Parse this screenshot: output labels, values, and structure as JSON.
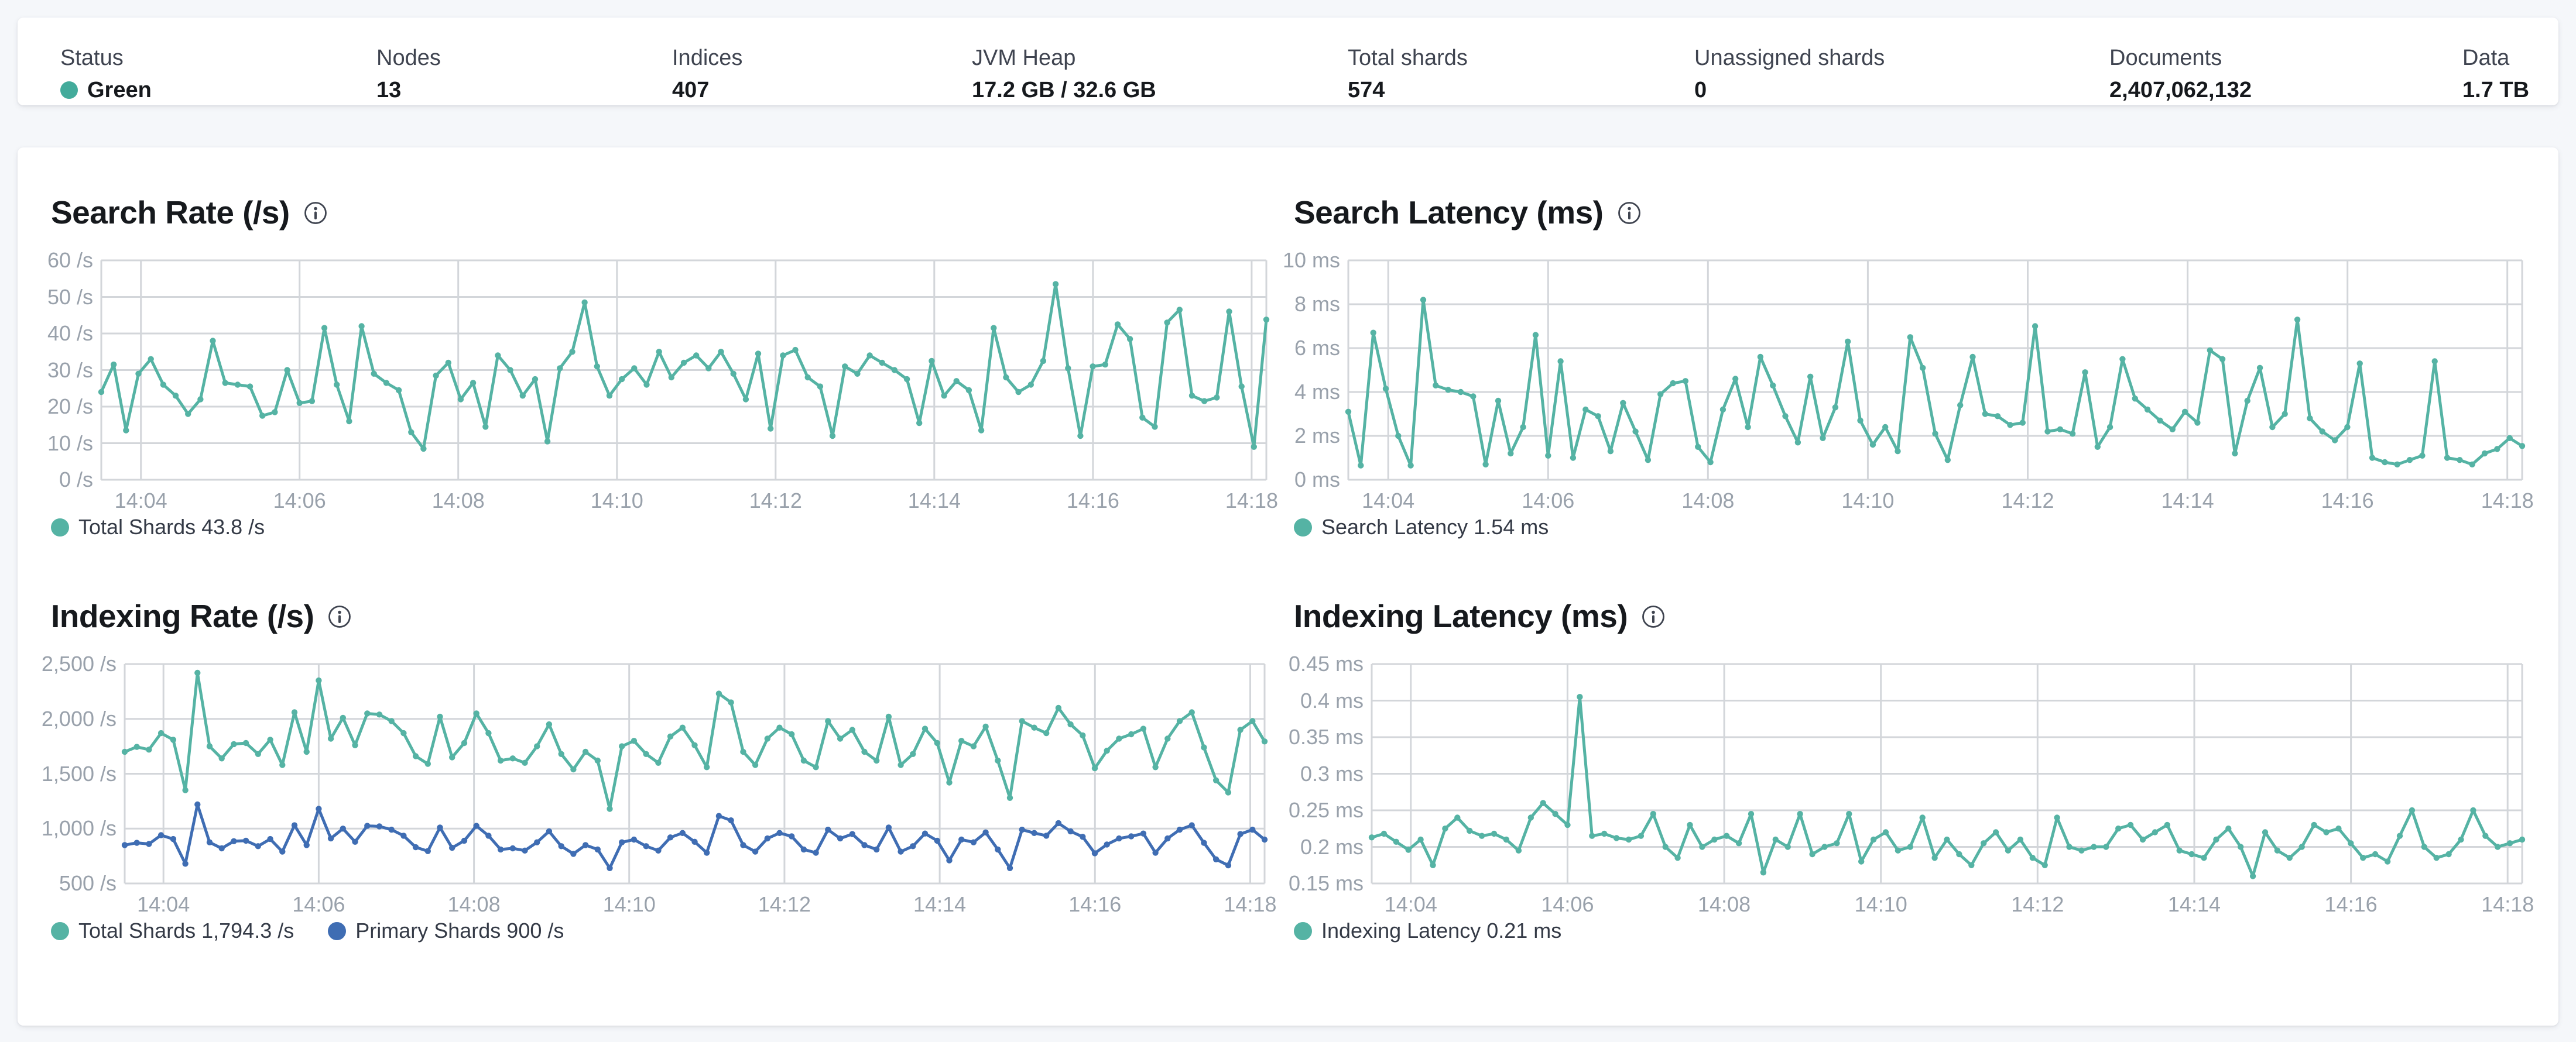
{
  "status_bar": {
    "items": [
      {
        "label": "Status",
        "value": "Green",
        "type": "health",
        "dot_color": "#43ab9b"
      },
      {
        "label": "Nodes",
        "value": "13"
      },
      {
        "label": "Indices",
        "value": "407"
      },
      {
        "label": "JVM Heap",
        "value": "17.2 GB / 32.6 GB"
      },
      {
        "label": "Total shards",
        "value": "574"
      },
      {
        "label": "Unassigned shards",
        "value": "0"
      },
      {
        "label": "Documents",
        "value": "2,407,062,132"
      },
      {
        "label": "Data",
        "value": "1.7 TB"
      }
    ]
  },
  "colors": {
    "teal": "#55b3a4",
    "blue": "#3f6db3",
    "grid": "#d3d6da",
    "tick_text": "#99a1ab",
    "page_bg": "#f5f7fa",
    "card_bg": "#ffffff",
    "title_text": "#16191d"
  },
  "chart_data": [
    {
      "id": "search-rate",
      "type": "line",
      "title": "Search Rate (/s)",
      "xticks": [
        "14:04",
        "14:06",
        "14:08",
        "14:10",
        "14:12",
        "14:14",
        "14:16",
        "14:18"
      ],
      "yticks": [
        "60 /s",
        "50 /s",
        "40 /s",
        "30 /s",
        "20 /s",
        "10 /s",
        "0 /s"
      ],
      "ylim": [
        0,
        60
      ],
      "grid": true,
      "legend_position": "bottom",
      "series": [
        {
          "name": "Total Shards",
          "color": "#55b3a4",
          "current": "43.8 /s",
          "values": [
            24,
            31.5,
            13.5,
            29,
            33,
            26,
            23,
            18,
            22,
            38,
            26.5,
            26,
            25.5,
            17.5,
            18.5,
            30,
            21,
            21.5,
            41.5,
            26,
            16,
            42,
            29,
            26.5,
            24.5,
            13,
            8.5,
            28.5,
            32,
            22,
            26.5,
            14.5,
            34,
            30,
            23,
            27.5,
            10.5,
            30.5,
            35,
            48.5,
            31,
            23,
            27.5,
            30.5,
            26,
            35,
            28,
            32,
            34,
            30.5,
            35,
            29,
            22,
            34.5,
            14,
            34,
            35.5,
            28,
            25.5,
            12,
            31,
            29,
            34,
            32,
            30,
            27.5,
            15.5,
            32.5,
            23,
            27,
            24.5,
            13.5,
            41.5,
            28,
            24,
            26,
            32.5,
            53.5,
            30.5,
            12,
            31,
            31.5,
            42.5,
            38.5,
            17,
            14.5,
            43,
            46.5,
            23,
            21.5,
            22.5,
            46,
            25.5,
            9,
            43.8
          ]
        }
      ],
      "legend": [
        {
          "label": "Total Shards 43.8 /s",
          "color": "#55b3a4"
        }
      ]
    },
    {
      "id": "search-latency",
      "type": "line",
      "title": "Search Latency (ms)",
      "xticks": [
        "14:04",
        "14:06",
        "14:08",
        "14:10",
        "14:12",
        "14:14",
        "14:16",
        "14:18"
      ],
      "yticks": [
        "10 ms",
        "8 ms",
        "6 ms",
        "4 ms",
        "2 ms",
        "0 ms"
      ],
      "ylim": [
        0,
        10
      ],
      "grid": true,
      "legend_position": "bottom",
      "series": [
        {
          "name": "Search Latency",
          "color": "#55b3a4",
          "current": "1.54 ms",
          "values": [
            3.1,
            0.65,
            6.7,
            4.15,
            2.0,
            0.65,
            8.2,
            4.3,
            4.1,
            4.0,
            3.8,
            0.7,
            3.6,
            1.2,
            2.4,
            6.6,
            1.1,
            5.4,
            1.0,
            3.2,
            2.9,
            1.3,
            3.5,
            2.2,
            0.9,
            3.9,
            4.4,
            4.5,
            1.5,
            0.8,
            3.2,
            4.6,
            2.4,
            5.6,
            4.3,
            2.9,
            1.7,
            4.7,
            1.9,
            3.3,
            6.3,
            2.7,
            1.6,
            2.4,
            1.3,
            6.5,
            5.1,
            2.1,
            0.9,
            3.4,
            5.6,
            3.0,
            2.9,
            2.5,
            2.6,
            7.0,
            2.2,
            2.3,
            2.1,
            4.9,
            1.5,
            2.4,
            5.5,
            3.7,
            3.2,
            2.7,
            2.3,
            3.1,
            2.6,
            5.9,
            5.5,
            1.2,
            3.6,
            5.1,
            2.4,
            3.0,
            7.3,
            2.8,
            2.2,
            1.8,
            2.4,
            5.3,
            1.0,
            0.8,
            0.7,
            0.9,
            1.1,
            5.4,
            1.0,
            0.9,
            0.7,
            1.2,
            1.4,
            1.9,
            1.54
          ]
        }
      ],
      "legend": [
        {
          "label": "Search Latency 1.54 ms",
          "color": "#55b3a4"
        }
      ]
    },
    {
      "id": "indexing-rate",
      "type": "line",
      "title": "Indexing Rate (/s)",
      "xticks": [
        "14:04",
        "14:06",
        "14:08",
        "14:10",
        "14:12",
        "14:14",
        "14:16",
        "14:18"
      ],
      "yticks": [
        "2,500 /s",
        "2,000 /s",
        "1,500 /s",
        "1,000 /s",
        "500 /s"
      ],
      "ylim": [
        500,
        2500
      ],
      "grid": true,
      "legend_position": "bottom",
      "series": [
        {
          "name": "Total Shards",
          "color": "#55b3a4",
          "current": "1,794.3 /s",
          "values": [
            1700,
            1745,
            1720,
            1870,
            1810,
            1350,
            2420,
            1750,
            1640,
            1770,
            1780,
            1680,
            1810,
            1580,
            2060,
            1700,
            2350,
            1820,
            2010,
            1760,
            2050,
            2040,
            1980,
            1870,
            1660,
            1590,
            2020,
            1650,
            1780,
            2050,
            1870,
            1620,
            1640,
            1600,
            1750,
            1950,
            1680,
            1540,
            1700,
            1620,
            1180,
            1750,
            1800,
            1680,
            1600,
            1840,
            1920,
            1760,
            1560,
            2230,
            2150,
            1700,
            1580,
            1820,
            1920,
            1860,
            1620,
            1560,
            1980,
            1820,
            1900,
            1700,
            1620,
            2020,
            1580,
            1680,
            1910,
            1780,
            1420,
            1800,
            1750,
            1930,
            1620,
            1280,
            1980,
            1920,
            1870,
            2100,
            1950,
            1850,
            1550,
            1710,
            1820,
            1860,
            1910,
            1560,
            1820,
            1980,
            2060,
            1740,
            1440,
            1330,
            1900,
            1980,
            1794.3
          ]
        },
        {
          "name": "Primary Shards",
          "color": "#3f6db3",
          "current": "900 /s",
          "values": [
            850,
            870,
            860,
            940,
            905,
            680,
            1220,
            875,
            820,
            885,
            890,
            840,
            905,
            790,
            1030,
            850,
            1180,
            910,
            1000,
            880,
            1025,
            1020,
            990,
            935,
            830,
            795,
            1010,
            825,
            890,
            1025,
            935,
            810,
            820,
            800,
            875,
            975,
            840,
            770,
            850,
            810,
            640,
            875,
            900,
            840,
            800,
            920,
            960,
            880,
            780,
            1115,
            1075,
            850,
            790,
            910,
            960,
            930,
            810,
            780,
            990,
            910,
            950,
            850,
            810,
            1010,
            790,
            840,
            955,
            890,
            710,
            900,
            875,
            965,
            810,
            640,
            990,
            960,
            935,
            1050,
            975,
            925,
            775,
            855,
            910,
            930,
            955,
            780,
            910,
            990,
            1030,
            870,
            720,
            665,
            950,
            990,
            900
          ]
        }
      ],
      "legend": [
        {
          "label": "Total Shards 1,794.3 /s",
          "color": "#55b3a4"
        },
        {
          "label": "Primary Shards 900 /s",
          "color": "#3f6db3"
        }
      ]
    },
    {
      "id": "indexing-latency",
      "type": "line",
      "title": "Indexing Latency (ms)",
      "xticks": [
        "14:04",
        "14:06",
        "14:08",
        "14:10",
        "14:12",
        "14:14",
        "14:16",
        "14:18"
      ],
      "yticks": [
        "0.45 ms",
        "0.4 ms",
        "0.35 ms",
        "0.3 ms",
        "0.25 ms",
        "0.2 ms",
        "0.15 ms"
      ],
      "ylim": [
        0.15,
        0.45
      ],
      "grid": true,
      "legend_position": "bottom",
      "series": [
        {
          "name": "Indexing Latency",
          "color": "#55b3a4",
          "current": "0.21 ms",
          "values": [
            0.213,
            0.218,
            0.207,
            0.196,
            0.21,
            0.175,
            0.225,
            0.24,
            0.222,
            0.215,
            0.218,
            0.21,
            0.195,
            0.24,
            0.26,
            0.245,
            0.23,
            0.405,
            0.215,
            0.218,
            0.212,
            0.21,
            0.215,
            0.245,
            0.2,
            0.185,
            0.23,
            0.2,
            0.21,
            0.215,
            0.205,
            0.245,
            0.165,
            0.21,
            0.2,
            0.245,
            0.19,
            0.2,
            0.205,
            0.245,
            0.18,
            0.21,
            0.22,
            0.195,
            0.2,
            0.24,
            0.185,
            0.21,
            0.19,
            0.175,
            0.205,
            0.22,
            0.195,
            0.21,
            0.185,
            0.175,
            0.24,
            0.2,
            0.195,
            0.2,
            0.2,
            0.225,
            0.23,
            0.21,
            0.22,
            0.23,
            0.195,
            0.19,
            0.185,
            0.21,
            0.225,
            0.2,
            0.16,
            0.22,
            0.195,
            0.185,
            0.2,
            0.23,
            0.22,
            0.225,
            0.205,
            0.185,
            0.19,
            0.18,
            0.215,
            0.25,
            0.2,
            0.185,
            0.19,
            0.21,
            0.25,
            0.215,
            0.2,
            0.205,
            0.21
          ]
        }
      ],
      "legend": [
        {
          "label": "Indexing Latency 0.21 ms",
          "color": "#55b3a4"
        }
      ]
    }
  ]
}
